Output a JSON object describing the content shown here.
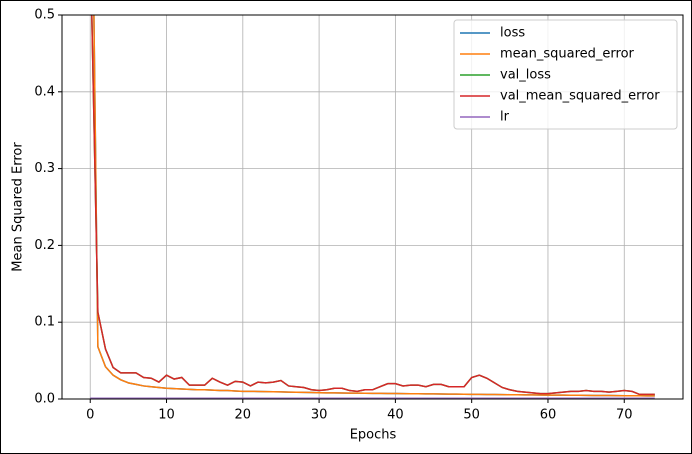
{
  "chart_data": {
    "type": "line",
    "xlabel": "Epochs",
    "ylabel": "Mean Squared Error",
    "x": [
      0,
      1,
      2,
      3,
      4,
      5,
      6,
      7,
      8,
      9,
      10,
      11,
      12,
      13,
      14,
      15,
      16,
      17,
      18,
      19,
      20,
      21,
      22,
      23,
      24,
      25,
      26,
      27,
      28,
      29,
      30,
      31,
      32,
      33,
      34,
      35,
      36,
      37,
      38,
      39,
      40,
      41,
      42,
      43,
      44,
      45,
      46,
      47,
      48,
      49,
      50,
      51,
      52,
      53,
      54,
      55,
      56,
      57,
      58,
      59,
      60,
      61,
      62,
      63,
      64,
      65,
      66,
      67,
      68,
      69,
      70,
      71,
      72,
      73,
      74
    ],
    "xlim": [
      -3.7,
      77.7
    ],
    "xticks": [
      0,
      10,
      20,
      30,
      40,
      50,
      60,
      70
    ],
    "ylim": [
      0,
      0.5
    ],
    "yticks": [
      {
        "value": 0,
        "label": "0.0"
      },
      0.1,
      0.2,
      0.3,
      0.4,
      0.5
    ],
    "grid": true,
    "legend": "upper right",
    "series": [
      {
        "name": "loss",
        "color": "#1f77b4",
        "values": [
          0.9,
          0.068,
          0.042,
          0.031,
          0.025,
          0.021,
          0.019,
          0.017,
          0.016,
          0.015,
          0.014,
          0.0135,
          0.013,
          0.0125,
          0.012,
          0.012,
          0.0115,
          0.011,
          0.011,
          0.0105,
          0.01,
          0.01,
          0.0098,
          0.0096,
          0.0094,
          0.0092,
          0.009,
          0.0088,
          0.0086,
          0.0084,
          0.0082,
          0.008,
          0.0079,
          0.0078,
          0.0077,
          0.0076,
          0.0075,
          0.0074,
          0.0073,
          0.0072,
          0.0071,
          0.007,
          0.0069,
          0.0068,
          0.0067,
          0.0066,
          0.0065,
          0.0064,
          0.0063,
          0.0062,
          0.0061,
          0.006,
          0.0059,
          0.0058,
          0.0057,
          0.0056,
          0.0055,
          0.0054,
          0.0053,
          0.0052,
          0.0051,
          0.005,
          0.005,
          0.0049,
          0.0048,
          0.0047,
          0.0046,
          0.0045,
          0.0045,
          0.0044,
          0.0043,
          0.0042,
          0.0042,
          0.0041,
          0.004
        ]
      },
      {
        "name": "mean_squared_error",
        "color": "#ff7f0e",
        "values": [
          0.9,
          0.068,
          0.042,
          0.031,
          0.025,
          0.021,
          0.019,
          0.017,
          0.016,
          0.015,
          0.014,
          0.0135,
          0.013,
          0.0125,
          0.012,
          0.012,
          0.0115,
          0.011,
          0.011,
          0.0105,
          0.01,
          0.01,
          0.0098,
          0.0096,
          0.0094,
          0.0092,
          0.009,
          0.0088,
          0.0086,
          0.0084,
          0.0082,
          0.008,
          0.0079,
          0.0078,
          0.0077,
          0.0076,
          0.0075,
          0.0074,
          0.0073,
          0.0072,
          0.0071,
          0.007,
          0.0069,
          0.0068,
          0.0067,
          0.0066,
          0.0065,
          0.0064,
          0.0063,
          0.0062,
          0.0061,
          0.006,
          0.0059,
          0.0058,
          0.0057,
          0.0056,
          0.0055,
          0.0054,
          0.0053,
          0.0052,
          0.0051,
          0.005,
          0.005,
          0.0049,
          0.0048,
          0.0047,
          0.0046,
          0.0045,
          0.0045,
          0.0044,
          0.0043,
          0.0042,
          0.0042,
          0.0041,
          0.004
        ]
      },
      {
        "name": "val_loss",
        "color": "#2ca02c",
        "values": [
          0.6,
          0.113,
          0.065,
          0.041,
          0.034,
          0.034,
          0.034,
          0.028,
          0.027,
          0.022,
          0.031,
          0.026,
          0.028,
          0.018,
          0.018,
          0.018,
          0.027,
          0.022,
          0.018,
          0.023,
          0.022,
          0.017,
          0.022,
          0.021,
          0.022,
          0.024,
          0.017,
          0.016,
          0.015,
          0.012,
          0.011,
          0.012,
          0.014,
          0.014,
          0.011,
          0.01,
          0.012,
          0.012,
          0.016,
          0.02,
          0.02,
          0.017,
          0.018,
          0.018,
          0.016,
          0.019,
          0.019,
          0.016,
          0.016,
          0.016,
          0.028,
          0.031,
          0.027,
          0.021,
          0.015,
          0.012,
          0.01,
          0.009,
          0.008,
          0.007,
          0.007,
          0.008,
          0.009,
          0.01,
          0.01,
          0.011,
          0.01,
          0.01,
          0.009,
          0.01,
          0.011,
          0.01,
          0.006,
          0.006,
          0.006
        ]
      },
      {
        "name": "val_mean_squared_error",
        "color": "#d62728",
        "values": [
          0.6,
          0.113,
          0.065,
          0.041,
          0.034,
          0.034,
          0.034,
          0.028,
          0.027,
          0.022,
          0.031,
          0.026,
          0.028,
          0.018,
          0.018,
          0.018,
          0.027,
          0.022,
          0.018,
          0.023,
          0.022,
          0.017,
          0.022,
          0.021,
          0.022,
          0.024,
          0.017,
          0.016,
          0.015,
          0.012,
          0.011,
          0.012,
          0.014,
          0.014,
          0.011,
          0.01,
          0.012,
          0.012,
          0.016,
          0.02,
          0.02,
          0.017,
          0.018,
          0.018,
          0.016,
          0.019,
          0.019,
          0.016,
          0.016,
          0.016,
          0.028,
          0.031,
          0.027,
          0.021,
          0.015,
          0.012,
          0.01,
          0.009,
          0.008,
          0.007,
          0.007,
          0.008,
          0.009,
          0.01,
          0.01,
          0.011,
          0.01,
          0.01,
          0.009,
          0.01,
          0.011,
          0.01,
          0.006,
          0.006,
          0.006
        ]
      },
      {
        "name": "lr",
        "color": "#9467bd",
        "values": [
          0.001,
          0.001,
          0.001,
          0.001,
          0.001,
          0.001,
          0.001,
          0.001,
          0.001,
          0.001,
          0.001,
          0.001,
          0.001,
          0.001,
          0.001,
          0.001,
          0.001,
          0.001,
          0.001,
          0.001,
          0.001,
          0.001,
          0.001,
          0.001,
          0.001,
          0.001,
          0.001,
          0.001,
          0.001,
          0.001,
          0.001,
          0.001,
          0.001,
          0.001,
          0.001,
          0.001,
          0.001,
          0.001,
          0.001,
          0.001,
          0.001,
          0.001,
          0.001,
          0.001,
          0.001,
          0.001,
          0.001,
          0.001,
          0.001,
          0.001,
          0.001,
          0.001,
          0.001,
          0.001,
          0.001,
          0.001,
          0.001,
          0.001,
          0.001,
          0.001,
          0.001,
          0.001,
          0.001,
          0.001,
          0.001,
          0.001,
          0.001,
          0.001,
          0.001,
          0.001,
          0.001,
          0.001,
          0.001,
          0.001,
          0.001
        ]
      }
    ]
  }
}
